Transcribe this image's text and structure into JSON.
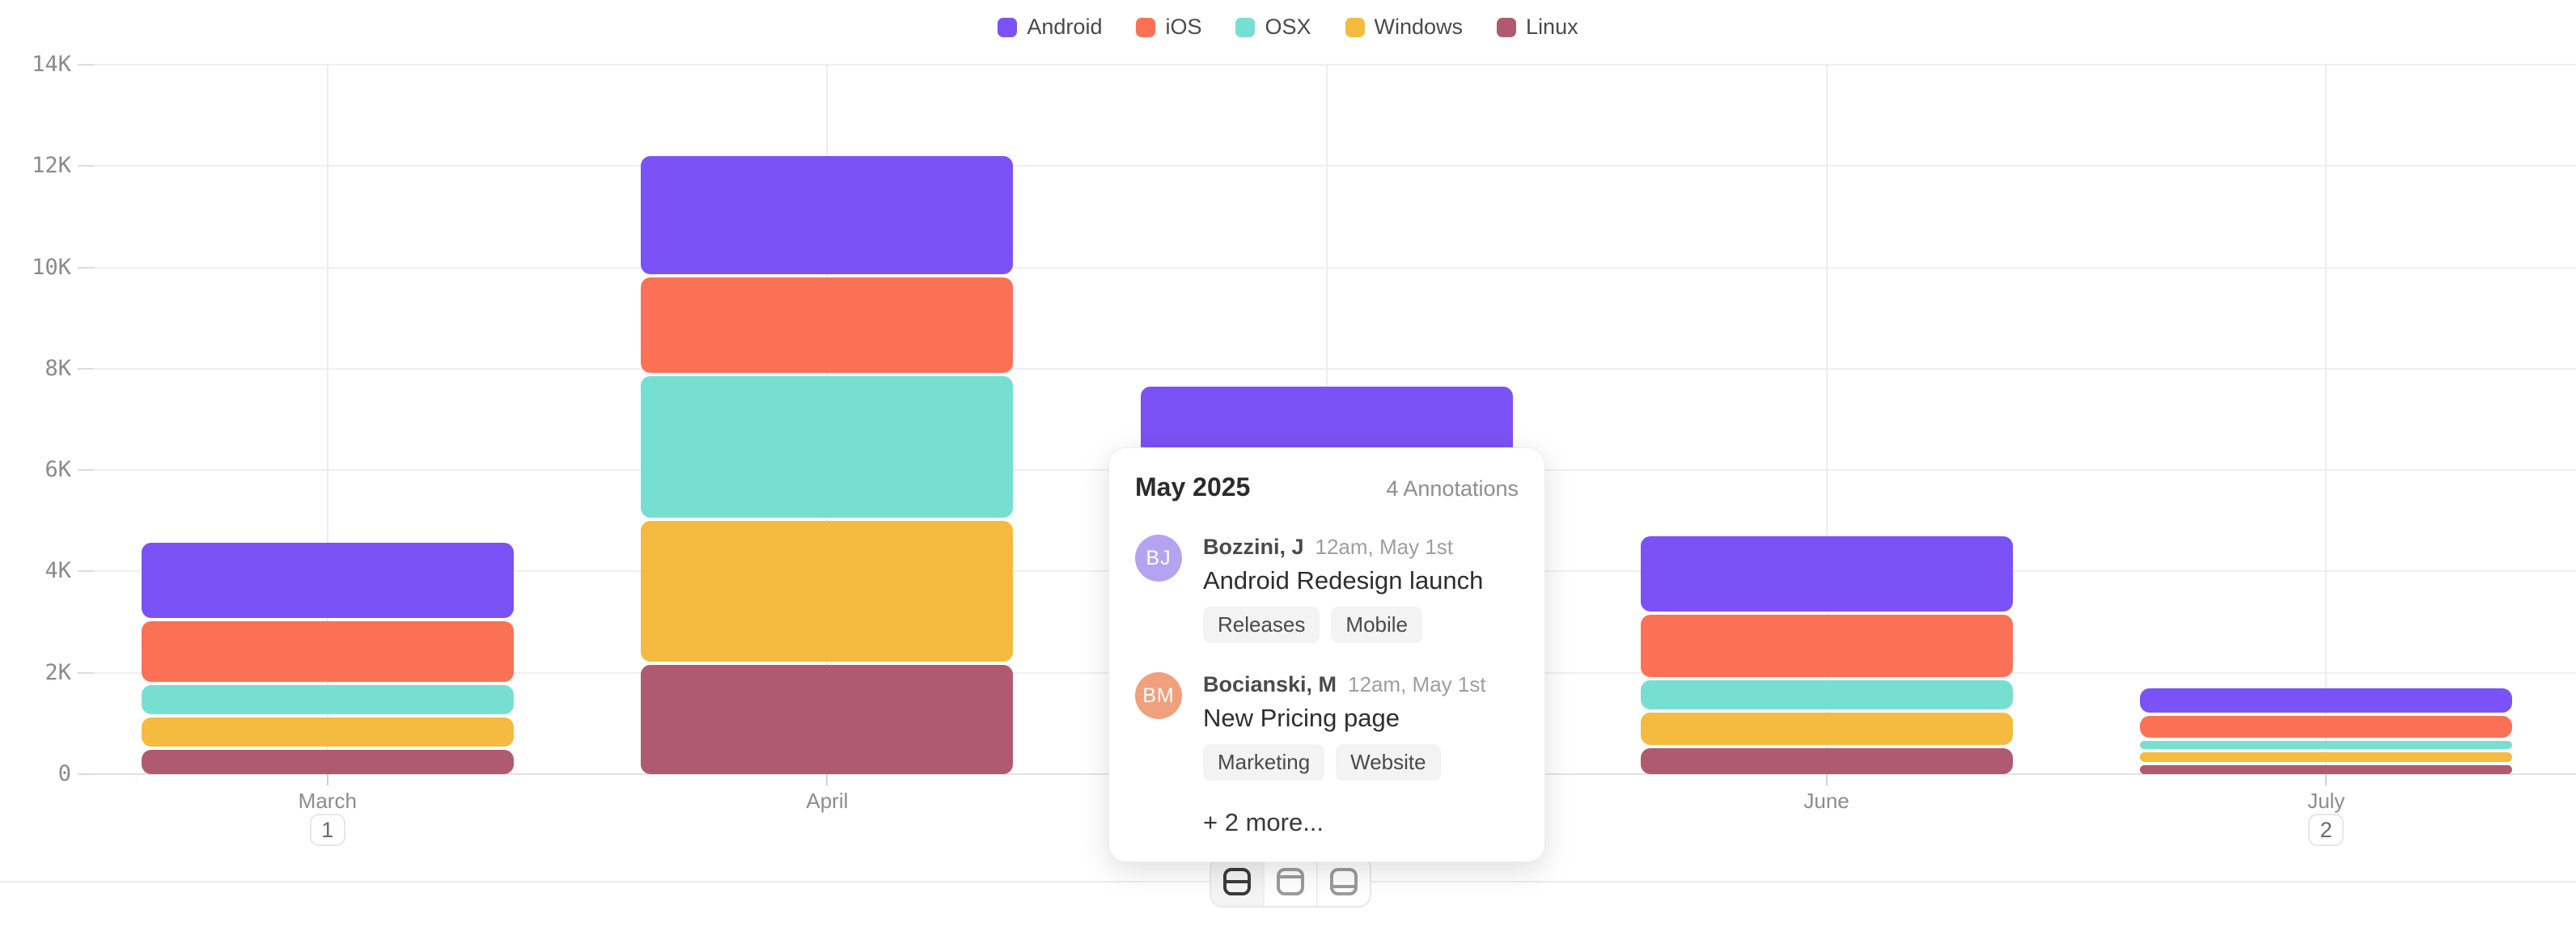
{
  "chart_data": {
    "type": "bar",
    "stacked": true,
    "title": "",
    "xlabel": "",
    "ylabel": "",
    "categories": [
      "March",
      "April",
      "May",
      "June",
      "July"
    ],
    "series": [
      {
        "name": "Android",
        "color": "#7a52f5",
        "values": [
          1550,
          2400,
          2000,
          1550,
          550
        ]
      },
      {
        "name": "iOS",
        "color": "#fb7156",
        "values": [
          1250,
          1950,
          1700,
          1300,
          500
        ]
      },
      {
        "name": "OSX",
        "color": "#77dfd1",
        "values": [
          640,
          2850,
          1500,
          640,
          225
        ]
      },
      {
        "name": "Windows",
        "color": "#f4bb40",
        "values": [
          640,
          2850,
          1400,
          700,
          250
        ]
      },
      {
        "name": "Linux",
        "color": "#af5a70",
        "values": [
          480,
          2150,
          1050,
          510,
          175
        ]
      }
    ],
    "ylim": [
      0,
      14000
    ],
    "y_ticks": [
      {
        "value": 0,
        "label": "0"
      },
      {
        "value": 2000,
        "label": "2K"
      },
      {
        "value": 4000,
        "label": "4K"
      },
      {
        "value": 6000,
        "label": "6K"
      },
      {
        "value": 8000,
        "label": "8K"
      },
      {
        "value": 10000,
        "label": "10K"
      },
      {
        "value": 12000,
        "label": "12K"
      },
      {
        "value": 14000,
        "label": "14K"
      }
    ],
    "grid": true,
    "legend_position": "top",
    "annotation_badges": [
      {
        "category": "March",
        "count": "1",
        "highlighted": false
      },
      {
        "category": "May",
        "count": "4",
        "highlighted": true
      },
      {
        "category": "July",
        "count": "2",
        "highlighted": false
      }
    ]
  },
  "tooltip": {
    "title": "May 2025",
    "count_label": "4 Annotations",
    "items": [
      {
        "initials": "BJ",
        "avatar_color": "#b3a4f1",
        "name": "Bozzini, J",
        "time": "12am, May 1st",
        "text": "Android Redesign launch",
        "tags": [
          "Releases",
          "Mobile"
        ]
      },
      {
        "initials": "BM",
        "avatar_color": "#f0a07d",
        "name": "Bocianski, M",
        "time": "12am, May 1st",
        "text": "New Pricing page",
        "tags": [
          "Marketing",
          "Website"
        ]
      }
    ],
    "more_label": "+ 2 more..."
  },
  "footer": {
    "view_buttons": [
      {
        "icon": "split-rows-icon",
        "active": true
      },
      {
        "icon": "panel-top-icon",
        "active": false
      },
      {
        "icon": "panel-bottom-icon",
        "active": false
      }
    ]
  },
  "colors": {
    "badge_highlight": "#6350d8",
    "grid_line": "#efefef",
    "axis_line": "#e2e2e2",
    "axis_text": "#8a8a8a"
  }
}
